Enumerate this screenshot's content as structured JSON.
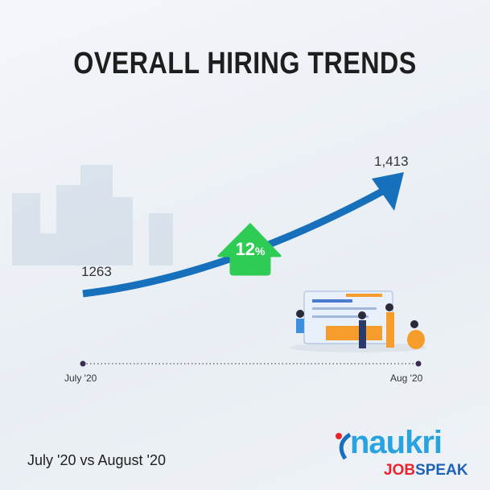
{
  "title": "OVERALL HIRING TRENDS",
  "footer": "July '20 vs August '20",
  "chart_data": {
    "type": "line",
    "title": "OVERALL HIRING TRENDS",
    "categories": [
      "July '20",
      "Aug '20"
    ],
    "values": [
      1263,
      1413
    ],
    "value_labels": [
      "1263",
      "1,413"
    ],
    "change_label": "12",
    "change_unit": "%",
    "colors": {
      "line": "#1670bb",
      "badge": "#2ecc55"
    }
  },
  "logo": {
    "brand": "naukri",
    "sub1": "JOB",
    "sub2": "SPEAK"
  }
}
